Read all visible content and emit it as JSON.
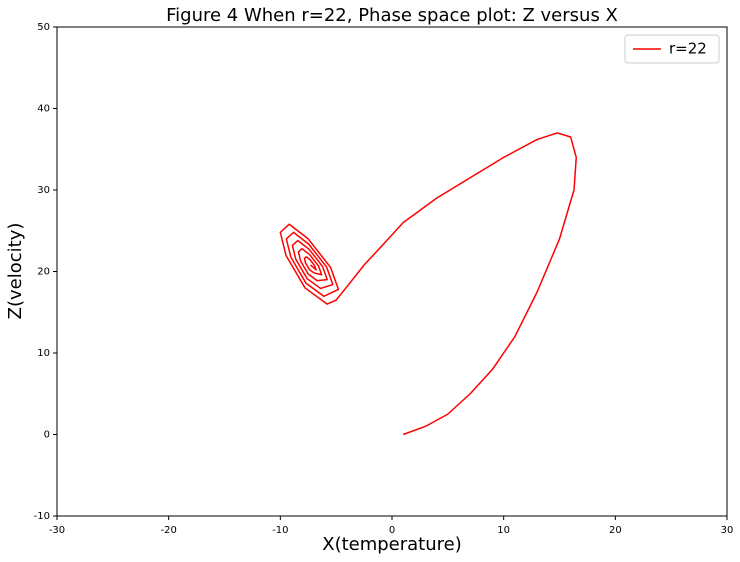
{
  "chart_data": {
    "type": "line",
    "title": "Figure 4 When r=22, Phase space plot: Z versus X",
    "x_label": "X(temperature)",
    "y_label": "Z(velocity)",
    "xlim": [
      -30,
      30
    ],
    "ylim": [
      -10,
      50
    ],
    "xticks": [
      -30,
      -20,
      -10,
      0,
      10,
      20,
      30
    ],
    "yticks": [
      -10,
      0,
      10,
      20,
      30,
      40,
      50
    ],
    "legend": "upper right",
    "grid": false,
    "series": [
      {
        "name": "r=22",
        "color": "#ff0000",
        "x": [
          1,
          3,
          5,
          7,
          9,
          11,
          13,
          15,
          16.3,
          16.5,
          16,
          14.8,
          13,
          10,
          7,
          4,
          1,
          -1,
          -2.5,
          -4,
          -5,
          -5.8,
          -7.8,
          -9.5,
          -10,
          -9.2,
          -7.5,
          -5.5,
          -4.8,
          -6.1,
          -7.7,
          -9.06,
          -9.46,
          -8.82,
          -7.46,
          -5.86,
          -5.3,
          -6.4,
          -7.6,
          -8.62,
          -8.92,
          -8.44,
          -7.42,
          -6.22,
          -5.8,
          -6.7,
          -7.5,
          -8.18,
          -8.38,
          -8.06,
          -7.38,
          -6.58,
          -6.3,
          -7.0,
          -7.4,
          -7.74,
          -7.84,
          -7.68,
          -7.34,
          -6.94,
          -6.8,
          -7.3
        ],
        "values": [
          0,
          1,
          2.5,
          5,
          8,
          12,
          17.5,
          24,
          30,
          34,
          36.5,
          37,
          36.2,
          34,
          31.5,
          29,
          26,
          23,
          20.8,
          18.2,
          16.5,
          16,
          18,
          22,
          24.8,
          25.8,
          24,
          20.5,
          17.8,
          16.96,
          18.56,
          21.76,
          24.0,
          24.8,
          23.36,
          20.56,
          18.4,
          17.92,
          19.12,
          21.52,
          23.2,
          23.8,
          22.72,
          20.62,
          19.0,
          18.88,
          19.68,
          21.28,
          22.4,
          22.8,
          22.08,
          20.68,
          19.6,
          19.84,
          20.24,
          21.04,
          21.6,
          21.8,
          21.44,
          20.74,
          20.2,
          20.8
        ]
      }
    ]
  }
}
